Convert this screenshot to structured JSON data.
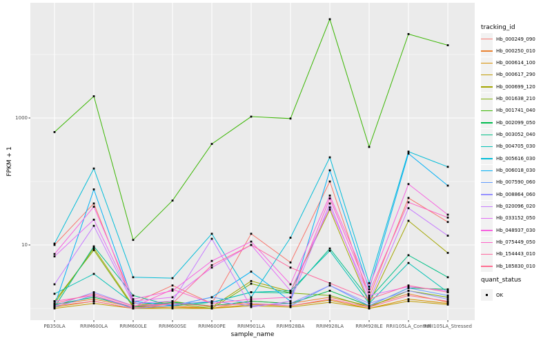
{
  "chart_data": {
    "type": "line",
    "title": "",
    "xlabel": "sample_name",
    "ylabel": "FPKM + 1",
    "y_scale": "log10",
    "grid": true,
    "panel_bg": "#EBEBEB",
    "gridline_color": "#FFFFFF",
    "point_color": "#000000",
    "axis_text_color": "#4D4D4D",
    "y_ticks": [
      {
        "value": 10,
        "label": "10"
      },
      {
        "value": 1000,
        "label": "1000"
      }
    ],
    "y_minor_gridlines": [
      1,
      100,
      10000
    ],
    "ylim": [
      0.7,
      65000
    ],
    "categories": [
      "PB350LA",
      "RRIM600LA",
      "RRIM600LE",
      "RRIM600SE",
      "RRIM600PE",
      "RRIM901LA",
      "RRIM928BA",
      "RRIM928LA",
      "RRIM928LE",
      "RRII105LA_Control",
      "RRII105LA_Stressed"
    ],
    "legend_title": "tracking_id",
    "series": [
      {
        "name": "Hb_000249_090",
        "color": "#F8766D",
        "values": [
          10,
          45,
          1.2,
          2.3,
          1.2,
          15,
          5.3,
          100,
          1.5,
          55,
          23
        ]
      },
      {
        "name": "Hb_000250_010",
        "color": "#EA8331",
        "values": [
          1.15,
          1.4,
          1.05,
          1.1,
          1.0,
          1.3,
          1.2,
          1.5,
          1.1,
          1.7,
          1.25
        ]
      },
      {
        "name": "Hb_000614_100",
        "color": "#D89000",
        "values": [
          1.05,
          1.3,
          1.0,
          1.05,
          1.0,
          1.15,
          1.1,
          1.35,
          1.0,
          1.4,
          1.2
        ]
      },
      {
        "name": "Hb_000617_290",
        "color": "#C09B00",
        "values": [
          1.0,
          1.2,
          1.0,
          1.0,
          1.0,
          1.1,
          1.05,
          1.25,
          1.0,
          1.3,
          1.15
        ]
      },
      {
        "name": "Hb_000699_120",
        "color": "#A3A500",
        "values": [
          1.2,
          8.9,
          1.1,
          1.3,
          1.05,
          2.7,
          1.85,
          36,
          1.2,
          24,
          7.5
        ]
      },
      {
        "name": "Hb_001638_210",
        "color": "#7CAE00",
        "values": [
          1.3,
          8.3,
          1.05,
          1.2,
          1.0,
          2.45,
          1.75,
          1.6,
          1.05,
          1.9,
          1.5
        ]
      },
      {
        "name": "Hb_001741_040",
        "color": "#39B600",
        "values": [
          600,
          2200,
          12,
          50,
          390,
          1050,
          980,
          36000,
          350,
          21000,
          14000
        ]
      },
      {
        "name": "Hb_002099_050",
        "color": "#00BB4E",
        "values": [
          1.15,
          1.5,
          1.05,
          1.25,
          1.1,
          1.3,
          1.2,
          1.9,
          1.1,
          2.1,
          2.0
        ]
      },
      {
        "name": "Hb_003052_040",
        "color": "#00C087",
        "values": [
          1.05,
          9.5,
          1.6,
          1.1,
          1.25,
          1.8,
          1.75,
          8.8,
          1.4,
          6.9,
          3.1
        ]
      },
      {
        "name": "Hb_004705_030",
        "color": "#00C0B4",
        "values": [
          1.7,
          3.5,
          1.2,
          1.2,
          1.25,
          1.8,
          1.9,
          8.1,
          1.2,
          5.2,
          1.8
        ]
      },
      {
        "name": "Hb_005616_030",
        "color": "#00BCD8",
        "values": [
          10.5,
          160,
          3.1,
          3.0,
          15,
          1.5,
          13,
          240,
          2.5,
          295,
          170
        ]
      },
      {
        "name": "Hb_006018_030",
        "color": "#00B0F6",
        "values": [
          1.1,
          75,
          1.3,
          1.1,
          1.5,
          3.8,
          1.3,
          150,
          2.0,
          275,
          86
        ]
      },
      {
        "name": "Hb_007590_060",
        "color": "#619CFF",
        "values": [
          1.05,
          1.6,
          1.0,
          1.1,
          1.5,
          1.2,
          1.1,
          2.3,
          1.1,
          2.1,
          1.6
        ]
      },
      {
        "name": "Hb_008864_060",
        "color": "#9590FF",
        "values": [
          1.1,
          1.8,
          1.1,
          1.15,
          1.3,
          1.1,
          1.2,
          2.3,
          1.2,
          1.9,
          1.4
        ]
      },
      {
        "name": "Hb_020096_020",
        "color": "#C77CFF",
        "values": [
          2.4,
          20,
          1.2,
          1.3,
          12.5,
          1.05,
          1.3,
          45,
          1.3,
          38,
          14
        ]
      },
      {
        "name": "Hb_033152_050",
        "color": "#E36EF6",
        "values": [
          6.6,
          25,
          1.3,
          1.5,
          4.4,
          10,
          1.9,
          39,
          1.6,
          2.2,
          1.9
        ]
      },
      {
        "name": "Hb_048937_030",
        "color": "#F763E0",
        "values": [
          7.2,
          40,
          1.4,
          1.9,
          5.6,
          11.3,
          2.4,
          60,
          2.2,
          91,
          30
        ]
      },
      {
        "name": "Hb_075449_050",
        "color": "#FF61C7",
        "values": [
          1.3,
          1.6,
          1.05,
          2.0,
          1.2,
          1.4,
          1.5,
          54,
          1.8,
          47,
          27
        ]
      },
      {
        "name": "Hb_154443_010",
        "color": "#FF689E",
        "values": [
          1.2,
          1.7,
          1.1,
          1.2,
          4.8,
          10,
          4.4,
          2.5,
          1.4,
          2.3,
          1.8
        ]
      },
      {
        "name": "Hb_185830_010",
        "color": "#FF6C91",
        "values": [
          1.1,
          1.3,
          1.0,
          1.2,
          1.1,
          1.2,
          1.1,
          1.4,
          1.05,
          1.6,
          1.3
        ]
      }
    ],
    "quant_legend": {
      "title": "quant_status",
      "items": [
        "OK"
      ]
    }
  },
  "layout_labels": {
    "ylabel": "FPKM + 1",
    "xlabel": "sample_name",
    "legend_title": "tracking_id",
    "quant_title": "quant_status",
    "quant_ok": "OK"
  }
}
